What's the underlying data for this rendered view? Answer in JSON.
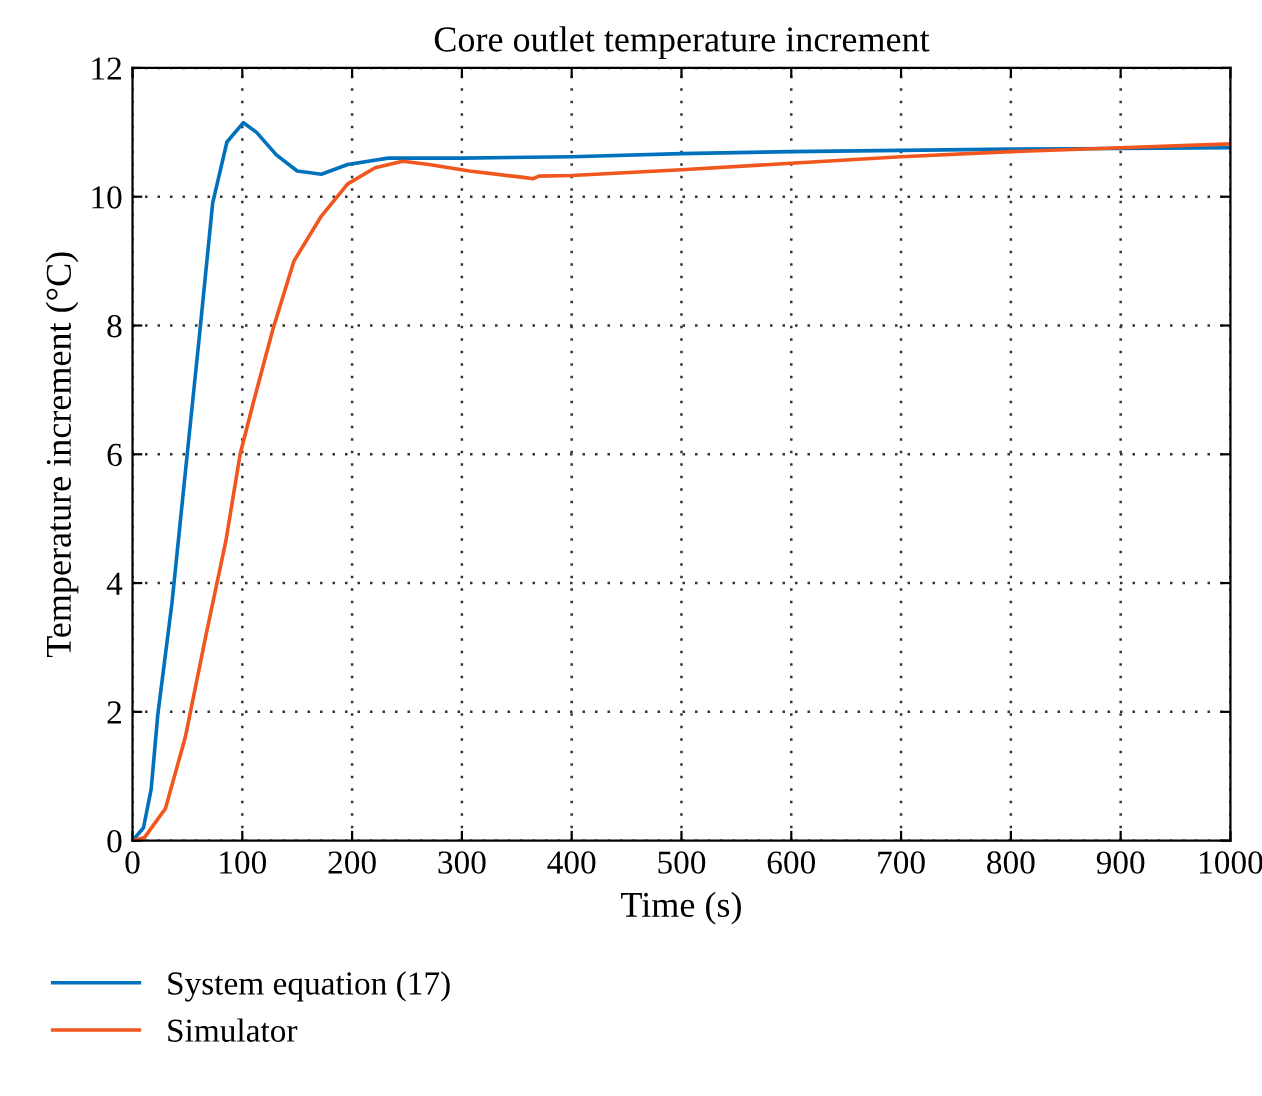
{
  "chart_data": {
    "type": "line",
    "title": "Core outlet temperature increment",
    "xlabel": "Time (s)",
    "ylabel": "Temperature increment (°C)",
    "xlim": [
      0,
      1000
    ],
    "ylim": [
      0,
      12
    ],
    "xticks": [
      0,
      100,
      200,
      300,
      400,
      500,
      600,
      700,
      800,
      900,
      1000
    ],
    "yticks": [
      0,
      2,
      4,
      6,
      8,
      10,
      12
    ],
    "grid": true,
    "legend": "bottom",
    "line_style": "solid",
    "marker": "none",
    "series": [
      {
        "name": "System equation (17)",
        "color": "#0072bd",
        "x": [
          0,
          10,
          17,
          23,
          36,
          48,
          61,
          73,
          86,
          101,
          113,
          131,
          150,
          172,
          196,
          233,
          300,
          400,
          500,
          600,
          700,
          800,
          900,
          1000
        ],
        "values": [
          0,
          0.2,
          0.8,
          1.95,
          3.7,
          5.7,
          7.85,
          9.9,
          10.85,
          11.15,
          11.0,
          10.65,
          10.4,
          10.35,
          10.5,
          10.6,
          10.6,
          10.62,
          10.67,
          10.7,
          10.72,
          10.74,
          10.75,
          10.76
        ]
      },
      {
        "name": "Simulator",
        "color": "#f0561e",
        "x": [
          0,
          11,
          30,
          48,
          67,
          85,
          98,
          110,
          128,
          147,
          172,
          196,
          221,
          246,
          270,
          307,
          356,
          365,
          370,
          400,
          500,
          600,
          700,
          800,
          900,
          1000
        ],
        "values": [
          0,
          0.05,
          0.5,
          1.6,
          3.2,
          4.65,
          6.0,
          6.8,
          7.95,
          9.0,
          9.7,
          10.2,
          10.45,
          10.55,
          10.5,
          10.4,
          10.3,
          10.28,
          10.32,
          10.33,
          10.42,
          10.52,
          10.62,
          10.7,
          10.76,
          10.82
        ]
      }
    ]
  }
}
